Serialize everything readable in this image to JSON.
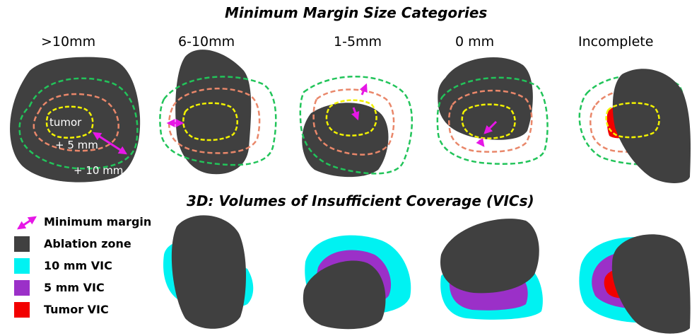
{
  "titles": {
    "top": "Minimum Margin Size Categories",
    "bottom": "3D: Volumes of Insufficient Coverage (VICs)"
  },
  "categories": [
    ">10mm",
    "6-10mm",
    "1-5mm",
    "0 mm",
    "Incomplete"
  ],
  "panel_labels": {
    "tumor": "tumor",
    "plus5": "+ 5 mm",
    "plus10": "+ 10 mm"
  },
  "legend": [
    {
      "label": "Minimum margin",
      "color": "#e617e6",
      "icon": "double-arrow-icon"
    },
    {
      "label": "Ablation zone",
      "color": "#404040",
      "icon": "square"
    },
    {
      "label": "10 mm VIC",
      "color": "#00f2f2",
      "icon": "square"
    },
    {
      "label": "5 mm VIC",
      "color": "#9b30c8",
      "icon": "square"
    },
    {
      "label": "Tumor VIC",
      "color": "#f20000",
      "icon": "square"
    }
  ],
  "colors": {
    "ablation": "#404040",
    "tumor_outline": "#f2f200",
    "margin5_outline": "#e9876a",
    "margin10_outline": "#22c45a",
    "arrow": "#e617e6",
    "vic10": "#00f2f2",
    "vic5": "#9b30c8",
    "vic_tumor": "#f20000"
  }
}
